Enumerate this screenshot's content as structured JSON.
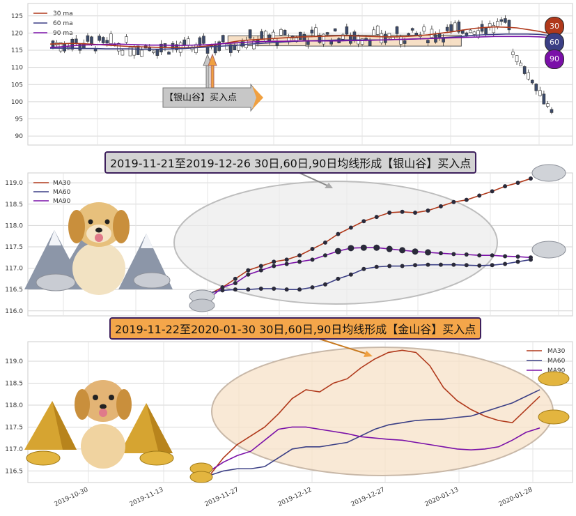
{
  "colors": {
    "ma30": "#b0391b",
    "ma60": "#3b3f85",
    "ma90": "#7a10a8"
  },
  "panel1": {
    "legend": [
      "30 ma",
      "60 ma",
      "90 ma"
    ],
    "yticks": [
      90,
      95,
      100,
      105,
      110,
      115,
      120,
      125
    ],
    "annotation": "【银山谷】买入点",
    "badges": [
      "30",
      "60",
      "90"
    ]
  },
  "banner1": "2019-11-21至2019-12-26 30日,60日,90日均线形成【银山谷】买入点",
  "banner2": "2019-11-22至2020-01-30 30日,60日,90日均线形成【金山谷】买入点",
  "panel2": {
    "legend": [
      "MA30",
      "MA60",
      "MA90"
    ],
    "yticks": [
      "116.0",
      "116.5",
      "117.0",
      "117.5",
      "118.0",
      "118.5",
      "119.0"
    ]
  },
  "panel3": {
    "legend": [
      "MA30",
      "MA60",
      "MA90"
    ],
    "yticks": [
      "116.5",
      "117.0",
      "117.5",
      "118.0",
      "118.5",
      "119.0"
    ],
    "xticks": [
      "2019-10-30",
      "2019-11-13",
      "2019-11-27",
      "2019-12-12",
      "2019-12-27",
      "2020-01-13",
      "2020-01-28"
    ]
  },
  "chart_data": [
    {
      "type": "candlestick",
      "series_names": [
        "30 ma",
        "60 ma",
        "90 ma"
      ],
      "ylim": [
        88,
        128
      ],
      "ma30": [
        116.8,
        116.9,
        117.0,
        116.9,
        116.7,
        116.5,
        116.3,
        116.1,
        116.0,
        115.9,
        115.8,
        115.8,
        115.7,
        115.9,
        116.2,
        116.6,
        117.2,
        117.7,
        118.0,
        118.2,
        118.4,
        118.6,
        118.8,
        118.9,
        119.0,
        119.1,
        119.2,
        119.2,
        119.1,
        119.0,
        118.9,
        118.9,
        119.0,
        119.2,
        119.5,
        119.9,
        120.3,
        120.8,
        121.3,
        121.6,
        121.8,
        121.7,
        121.5,
        121.0,
        120.5,
        119.8
      ],
      "ma60": [
        115.6,
        115.6,
        115.6,
        115.5,
        115.5,
        115.4,
        115.4,
        115.4,
        115.3,
        115.3,
        115.3,
        115.4,
        115.5,
        115.7,
        115.9,
        116.1,
        116.3,
        116.5,
        116.8,
        117.0,
        117.2,
        117.4,
        117.6,
        117.7,
        117.8,
        117.9,
        118.0,
        118.0,
        118.0,
        118.0,
        118.0,
        118.1,
        118.2,
        118.3,
        118.4,
        118.6,
        118.8,
        119.0,
        119.3,
        119.5,
        119.6,
        119.7,
        119.7,
        119.7,
        119.6,
        119.3
      ],
      "ma90": [
        115.8,
        116.0,
        116.3,
        116.5,
        116.6,
        116.7,
        116.8,
        116.7,
        116.6,
        116.5,
        116.5,
        116.4,
        116.4,
        116.5,
        116.6,
        116.8,
        117.0,
        117.2,
        117.4,
        117.5,
        117.6,
        117.6,
        117.7,
        117.7,
        117.7,
        117.7,
        117.7,
        117.8,
        117.8,
        117.9,
        118.0,
        118.1,
        118.2,
        118.3,
        118.4,
        118.5,
        118.6,
        118.7,
        118.8,
        118.9,
        119.0,
        119.0,
        119.0,
        119.0,
        118.9,
        118.7
      ],
      "boxes": [
        {
          "x0": 16,
          "x1": 23,
          "y0": 116.3,
          "y1": 119.2
        },
        {
          "x0": 23,
          "x1": 37,
          "y0": 116.2,
          "y1": 119.4
        }
      ]
    },
    {
      "type": "line",
      "series": [
        {
          "name": "MA30",
          "values": [
            116.4,
            116.55,
            116.75,
            116.95,
            117.05,
            117.15,
            117.2,
            117.3,
            117.45,
            117.6,
            117.8,
            117.95,
            118.1,
            118.2,
            118.3,
            118.32,
            118.3,
            118.35,
            118.45,
            118.55,
            118.6,
            118.7,
            118.8,
            118.92,
            119.0,
            119.1
          ]
        },
        {
          "name": "MA60",
          "values": [
            116.42,
            116.48,
            116.5,
            116.5,
            116.52,
            116.52,
            116.5,
            116.5,
            116.55,
            116.62,
            116.75,
            116.85,
            116.98,
            117.03,
            117.05,
            117.05,
            117.07,
            117.08,
            117.08,
            117.08,
            117.07,
            117.06,
            117.07,
            117.1,
            117.15,
            117.2
          ]
        },
        {
          "name": "MA90",
          "values": [
            116.3,
            116.55,
            116.65,
            116.85,
            116.95,
            117.05,
            117.1,
            117.15,
            117.2,
            117.3,
            117.4,
            117.47,
            117.48,
            117.48,
            117.45,
            117.42,
            117.39,
            117.37,
            117.35,
            117.33,
            117.32,
            117.3,
            117.3,
            117.28,
            117.27,
            117.25
          ]
        }
      ],
      "ylim": [
        115.98,
        119.15
      ]
    },
    {
      "type": "line",
      "series": [
        {
          "name": "MA30",
          "values": [
            116.4,
            116.8,
            117.1,
            117.3,
            117.5,
            117.8,
            118.15,
            118.35,
            118.3,
            118.5,
            118.6,
            118.85,
            119.05,
            119.2,
            119.25,
            119.2,
            118.9,
            118.4,
            118.1,
            117.9,
            117.75,
            117.65,
            117.6,
            117.9,
            118.2
          ]
        },
        {
          "name": "MA60",
          "values": [
            116.4,
            116.5,
            116.55,
            116.55,
            116.6,
            116.8,
            117.0,
            117.05,
            117.05,
            117.1,
            117.15,
            117.3,
            117.45,
            117.55,
            117.6,
            117.65,
            117.67,
            117.68,
            117.72,
            117.75,
            117.85,
            117.95,
            118.05,
            118.2,
            118.35
          ]
        },
        {
          "name": "MA90",
          "values": [
            116.5,
            116.7,
            116.85,
            116.95,
            117.2,
            117.45,
            117.5,
            117.5,
            117.45,
            117.4,
            117.35,
            117.28,
            117.25,
            117.22,
            117.2,
            117.15,
            117.1,
            117.05,
            117.0,
            116.98,
            117.0,
            117.05,
            117.2,
            117.38,
            117.48
          ]
        }
      ],
      "ylim": [
        116.3,
        119.35
      ],
      "xticks": [
        "2019-10-30",
        "2019-11-13",
        "2019-11-27",
        "2019-12-12",
        "2019-12-27",
        "2020-01-13",
        "2020-01-28"
      ]
    }
  ]
}
